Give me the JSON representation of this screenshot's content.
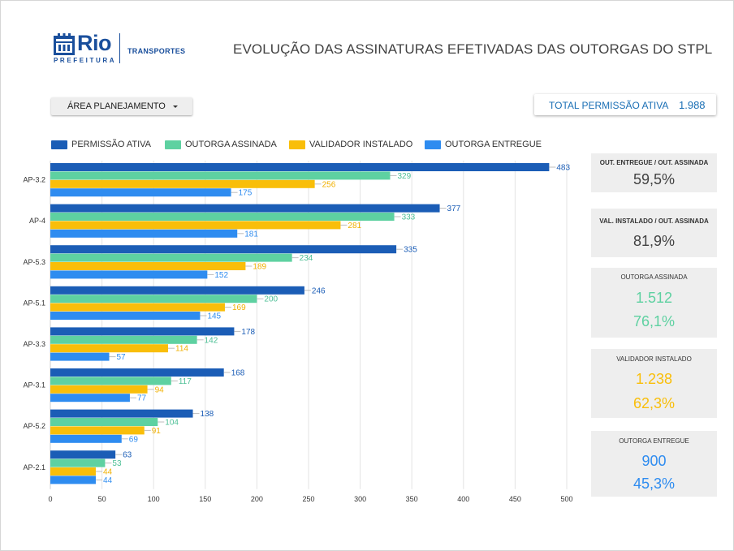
{
  "logo": {
    "word": "Rio",
    "sub": "PREFEITURA",
    "dept": "TRANSPORTES"
  },
  "title": "EVOLUÇÃO DAS ASSINATURAS EFETIVADAS DAS OUTORGAS DO STPL",
  "filter": {
    "label": "ÁREA PLANEJAMENTO"
  },
  "total": {
    "label": "TOTAL PERMISSÃO ATIVA",
    "value": "1.988"
  },
  "colors": {
    "permissao": "#1b5db6",
    "assinada": "#5ed1a1",
    "validador": "#f9be09",
    "entregue": "#2e8cf0"
  },
  "chart_data": {
    "type": "bar",
    "orientation": "horizontal",
    "categories": [
      "AP-3.2",
      "AP-4",
      "AP-5.3",
      "AP-5.1",
      "AP-3.3",
      "AP-3.1",
      "AP-5.2",
      "AP-2.1"
    ],
    "series": [
      {
        "name": "PERMISSÃO ATIVA",
        "color": "#1b5db6",
        "label_color": "#1b5db6",
        "values": [
          483,
          377,
          335,
          246,
          178,
          168,
          138,
          63
        ]
      },
      {
        "name": "OUTORGA ASSINADA",
        "color": "#5ed1a1",
        "label_color": "#4cbf95",
        "values": [
          329,
          333,
          234,
          200,
          142,
          117,
          104,
          53
        ]
      },
      {
        "name": "VALIDADOR INSTALADO",
        "color": "#f9be09",
        "label_color": "#f0b000",
        "values": [
          256,
          281,
          189,
          169,
          114,
          94,
          91,
          44
        ]
      },
      {
        "name": "OUTORGA ENTREGUE",
        "color": "#2e8cf0",
        "label_color": "#2e8cf0",
        "values": [
          175,
          181,
          152,
          145,
          57,
          77,
          69,
          44
        ]
      }
    ],
    "xlim": [
      0,
      500
    ],
    "xticks": [
      0,
      50,
      100,
      150,
      200,
      250,
      300,
      350,
      400,
      450,
      500
    ],
    "grid": true,
    "legend": "top"
  },
  "cards": [
    {
      "title": "OUT. ENTREGUE / OUT. ASSINADA",
      "value": "59,5%",
      "color": "#424242"
    },
    {
      "title": "VAL. INSTALADO / OUT. ASSINADA",
      "value": "81,9%",
      "color": "#424242"
    },
    {
      "title": "OUTORGA ASSINADA",
      "value": "1.512",
      "value2": "76,1%",
      "color": "#5ed1a1"
    },
    {
      "title": "VALIDADOR INSTALADO",
      "value": "1.238",
      "value2": "62,3%",
      "color": "#f9be09"
    },
    {
      "title": "OUTORGA ENTREGUE",
      "value": "900",
      "value2": "45,3%",
      "color": "#2e8cf0"
    }
  ]
}
